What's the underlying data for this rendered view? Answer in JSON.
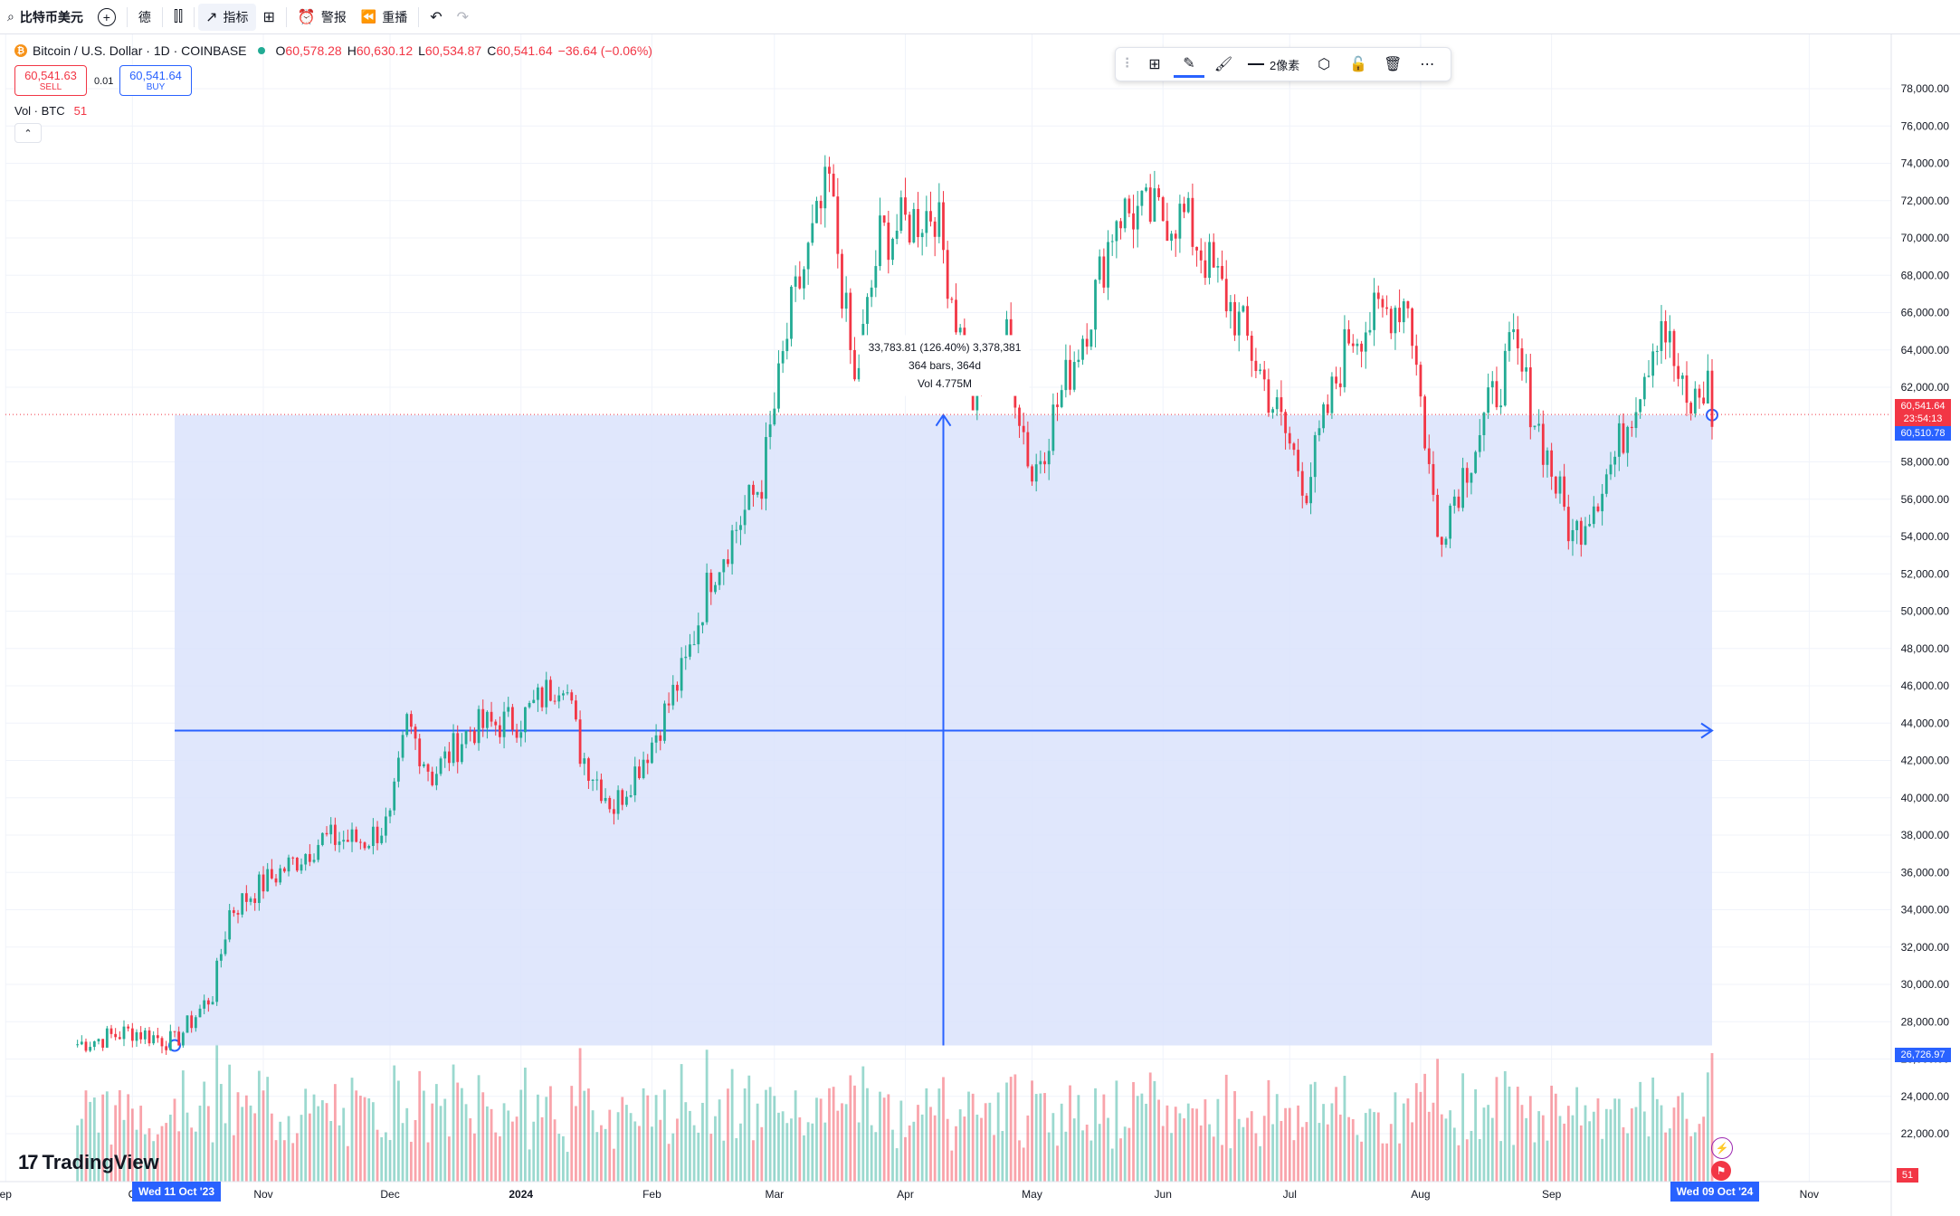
{
  "toolbar": {
    "symbol_search": "比特币美元",
    "indicator_label": "指标",
    "alert_label": "警报",
    "replay_label": "重播",
    "interval_glyph": "德"
  },
  "legend": {
    "symbol": "Bitcoin / U.S. Dollar · 1D · COINBASE",
    "open_label": "O",
    "open": "60,578.28",
    "high_label": "H",
    "high": "60,630.12",
    "low_label": "L",
    "low": "60,534.87",
    "close_label": "C",
    "close": "60,541.64",
    "change": "−36.64 (−0.06%)"
  },
  "trade": {
    "sell_price": "60,541.63",
    "sell_label": "SELL",
    "spread": "0.01",
    "buy_price": "60,541.64",
    "buy_label": "BUY"
  },
  "volume_legend": {
    "label": "Vol · BTC",
    "value": "51"
  },
  "drawing_toolbar": {
    "width_label": "2像素"
  },
  "measure": {
    "line1": "33,783.81 (126.40%) 3,378,381",
    "line2": "364 bars, 364d",
    "line3": "Vol 4.775M"
  },
  "price_labels": {
    "last_price": "60,541.64",
    "countdown": "23:54:13",
    "cross_price": "60,510.78",
    "range_low": "26,726.97",
    "volume_value": "51"
  },
  "date_labels": {
    "start": "Wed 11 Oct '23",
    "end": "Wed 09 Oct '24"
  },
  "branding": {
    "logo_text": "TradingView"
  },
  "colors": {
    "up": "#22ab94",
    "down": "#f23645",
    "range_fill": "#dbe3fb",
    "range_line": "#2962ff"
  },
  "chart_data": {
    "type": "candlestick",
    "title": "Bitcoin / U.S. Dollar · 1D · COINBASE",
    "y_axis": {
      "min": 24000,
      "max": 78000,
      "ticks": [
        "78,000.00",
        "76,000.00",
        "74,000.00",
        "72,000.00",
        "70,000.00",
        "68,000.00",
        "66,000.00",
        "64,000.00",
        "62,000.00",
        "58,000.00",
        "56,000.00",
        "54,000.00",
        "52,000.00",
        "50,000.00",
        "48,000.00",
        "46,000.00",
        "44,000.00",
        "42,000.00",
        "40,000.00",
        "38,000.00",
        "36,000.00",
        "34,000.00",
        "32,000.00",
        "30,000.00",
        "28,000.00",
        "26,000.00",
        "24,000.00",
        "22,000.00"
      ],
      "tick_values": [
        78000,
        76000,
        74000,
        72000,
        70000,
        68000,
        66000,
        64000,
        62000,
        58000,
        56000,
        54000,
        52000,
        50000,
        48000,
        46000,
        44000,
        42000,
        40000,
        38000,
        36000,
        34000,
        32000,
        30000,
        28000,
        26000,
        24000,
        22000
      ]
    },
    "x_axis": {
      "ticks": [
        "ep",
        "O",
        "Nov",
        "Dec",
        "2024",
        "Feb",
        "Mar",
        "Apr",
        "May",
        "Jun",
        "Jul",
        "Aug",
        "Sep",
        "Nov"
      ],
      "tick_dates": [
        "2023-09-01",
        "2023-10-01",
        "2023-11-01",
        "2023-12-01",
        "2024-01-01",
        "2024-02-01",
        "2024-03-01",
        "2024-04-01",
        "2024-05-01",
        "2024-06-01",
        "2024-07-01",
        "2024-08-01",
        "2024-09-01",
        "2024-11-01"
      ]
    },
    "series": [
      {
        "points": [
          [
            "2023-09-18",
            26800
          ],
          [
            "2023-10-01",
            27500
          ],
          [
            "2023-10-11",
            26900
          ],
          [
            "2023-10-20",
            29500
          ],
          [
            "2023-10-24",
            33900
          ],
          [
            "2023-11-01",
            35400
          ],
          [
            "2023-11-09",
            36700
          ],
          [
            "2023-11-15",
            37800
          ],
          [
            "2023-11-25",
            37700
          ],
          [
            "2023-12-01",
            38700
          ],
          [
            "2023-12-05",
            44000
          ],
          [
            "2023-12-11",
            41200
          ],
          [
            "2023-12-20",
            43700
          ],
          [
            "2024-01-01",
            44200
          ],
          [
            "2024-01-11",
            46600
          ],
          [
            "2024-01-15",
            42500
          ],
          [
            "2024-01-23",
            39500
          ],
          [
            "2024-02-01",
            43000
          ],
          [
            "2024-02-09",
            47100
          ],
          [
            "2024-02-15",
            52000
          ],
          [
            "2024-02-27",
            57000
          ],
          [
            "2024-03-05",
            66000
          ],
          [
            "2024-03-14",
            73000
          ],
          [
            "2024-03-20",
            62000
          ],
          [
            "2024-03-26",
            70000
          ],
          [
            "2024-04-08",
            71600
          ],
          [
            "2024-04-17",
            61300
          ],
          [
            "2024-04-25",
            64500
          ],
          [
            "2024-05-01",
            57200
          ],
          [
            "2024-05-15",
            66200
          ],
          [
            "2024-05-21",
            71400
          ],
          [
            "2024-06-06",
            71100
          ],
          [
            "2024-06-20",
            65000
          ],
          [
            "2024-07-05",
            56700
          ],
          [
            "2024-07-15",
            64800
          ],
          [
            "2024-07-29",
            66800
          ],
          [
            "2024-08-05",
            54000
          ],
          [
            "2024-08-23",
            64100
          ],
          [
            "2024-09-06",
            53900
          ],
          [
            "2024-09-16",
            58200
          ],
          [
            "2024-09-27",
            65800
          ],
          [
            "2024-10-03",
            60700
          ],
          [
            "2024-10-08",
            62100
          ],
          [
            "2024-10-09",
            60541.64
          ]
        ]
      }
    ],
    "annotations": {
      "range_start_date": "2023-10-11",
      "range_end_date": "2024-10-09",
      "range_low": 26726.97,
      "range_high": 60510.78,
      "crosshair_price": 43600
    }
  }
}
